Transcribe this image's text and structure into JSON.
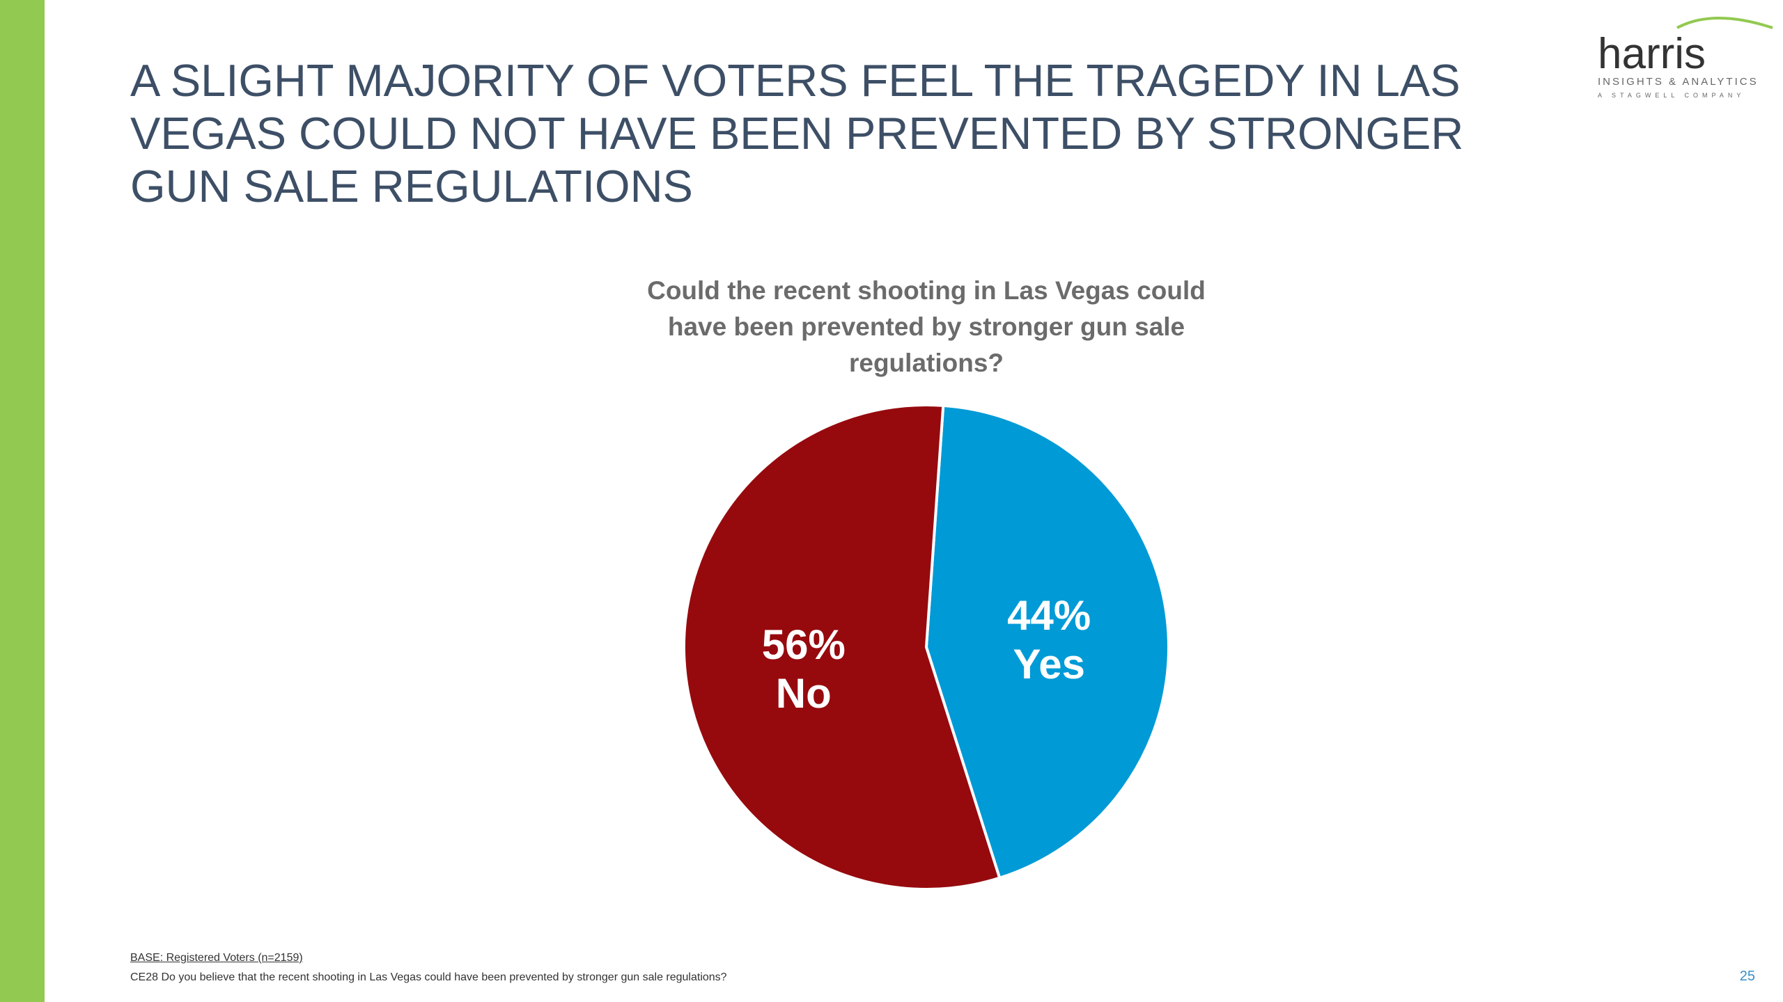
{
  "slide": {
    "headline": "A SLIGHT MAJORITY OF VOTERS FEEL THE TRAGEDY IN LAS VEGAS COULD NOT HAVE BEEN PREVENTED BY STRONGER GUN SALE REGULATIONS",
    "page_number": "25",
    "accent_color": "#92c950"
  },
  "logo": {
    "name": "harris",
    "tagline": "INSIGHTS & ANALYTICS",
    "subtagline": "A STAGWELL COMPANY"
  },
  "footer": {
    "base": "BASE: Registered Voters (n=2159)",
    "question": "CE28 Do you believe that the recent shooting in Las Vegas could have been prevented by stronger gun sale regulations?"
  },
  "chart_data": {
    "type": "pie",
    "title": "Could the recent shooting in Las Vegas could have been prevented by stronger gun sale regulations?",
    "slices": [
      {
        "label": "Yes",
        "value": 44,
        "value_label": "44%",
        "color": "#009ad6"
      },
      {
        "label": "No",
        "value": 56,
        "value_label": "56%",
        "color": "#960a0e"
      }
    ],
    "start": "top, clockwise, slightly rotated"
  }
}
